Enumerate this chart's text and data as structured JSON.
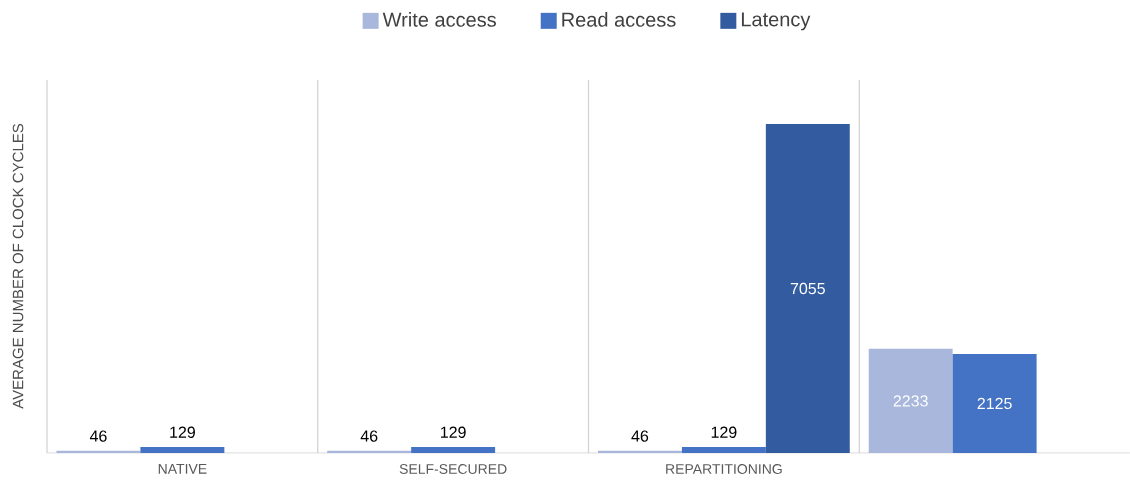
{
  "chart_data": {
    "type": "bar",
    "ylabel": "AVERAGE NUMBER OF CLOCK CYCLES",
    "categories": [
      "NATIVE",
      "SELF-SECURED",
      "REPARTITIONING",
      null
    ],
    "series": [
      {
        "name": "Write access",
        "color": "#a9b7dc",
        "values": [
          46,
          46,
          46,
          2233
        ]
      },
      {
        "name": "Read access",
        "color": "#4472c4",
        "values": [
          129,
          129,
          129,
          2125
        ]
      },
      {
        "name": "Latency",
        "color": "#335ca0",
        "values": [
          null,
          null,
          7055,
          null
        ]
      }
    ],
    "ylim": [
      0,
      8000
    ],
    "data_labels": true,
    "grid": "x",
    "legend": "top",
    "tick_labels": "x"
  }
}
